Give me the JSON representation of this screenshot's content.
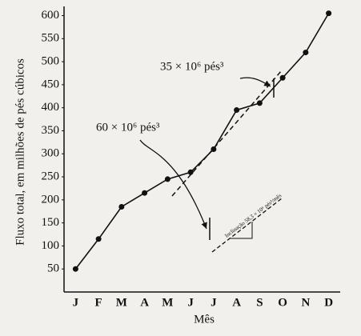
{
  "chart_data": {
    "type": "line",
    "x_label": "Mês",
    "y_label": "Fluxo total, em milhões de pés cúbicos",
    "categories": [
      "J",
      "F",
      "M",
      "A",
      "M",
      "J",
      "J",
      "A",
      "S",
      "O",
      "N",
      "D"
    ],
    "values": [
      50,
      115,
      185,
      215,
      245,
      260,
      310,
      395,
      410,
      465,
      520,
      605
    ],
    "color": "#111111",
    "ylim": [
      0,
      620
    ],
    "yticks": [
      50,
      100,
      150,
      200,
      250,
      300,
      350,
      400,
      450,
      500,
      550,
      600
    ],
    "annotations": [
      "60 × 10⁶ pés³",
      "35 × 10⁶ pés³",
      "Inclinação 58,3 × 10⁶ pés³/mês"
    ]
  }
}
